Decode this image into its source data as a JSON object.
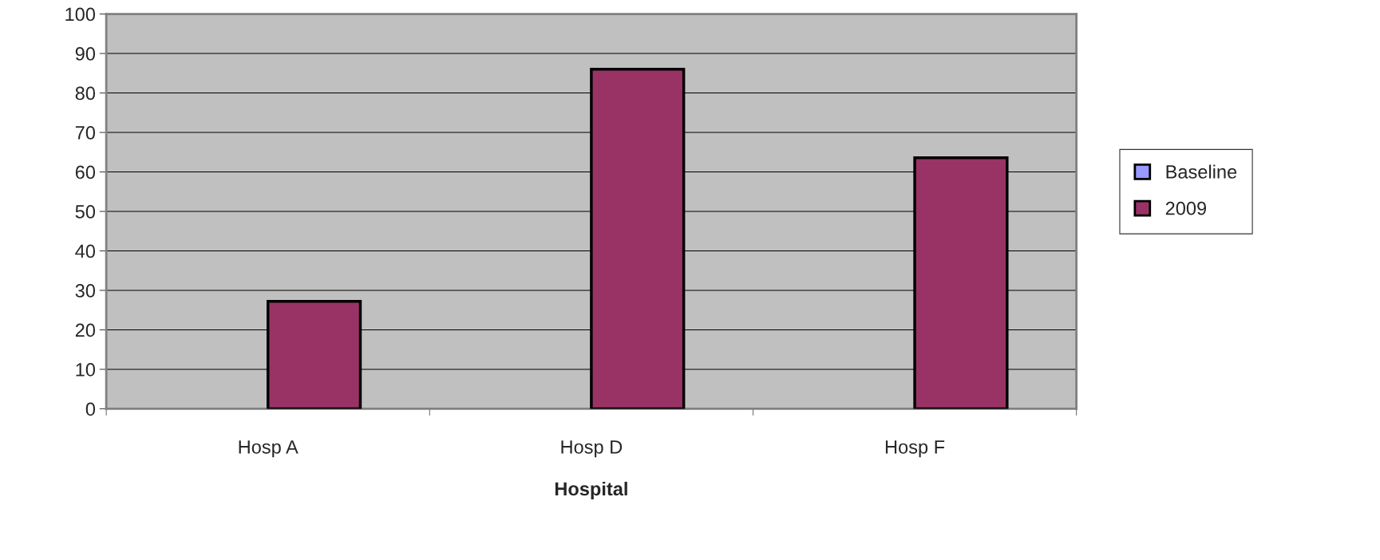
{
  "chart_data": {
    "type": "bar",
    "xlabel": "Hospital",
    "categories": [
      "Hosp A",
      "Hosp D",
      "Hosp F"
    ],
    "series": [
      {
        "name": "Baseline",
        "color": "#9999ff",
        "values": [
          null,
          null,
          null
        ]
      },
      {
        "name": "2009",
        "color": "#993366",
        "values": [
          27.2,
          86.0,
          63.6
        ]
      }
    ],
    "ylim": [
      0,
      100
    ],
    "yticks": [
      0,
      10,
      20,
      30,
      40,
      50,
      60,
      70,
      80,
      90,
      100
    ],
    "grid": "y",
    "legend": "right"
  }
}
